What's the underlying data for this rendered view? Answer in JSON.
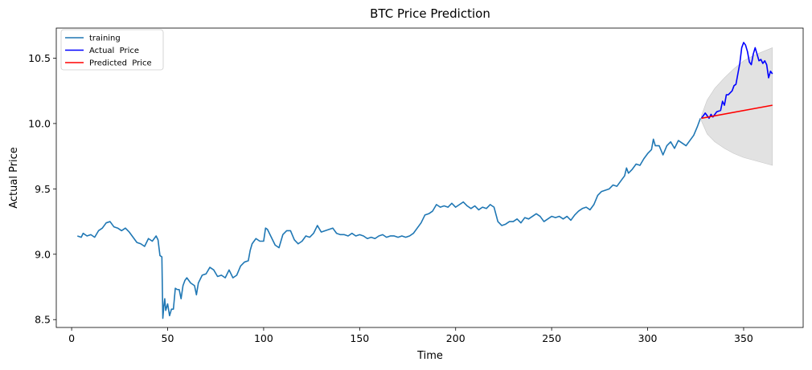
{
  "chart_data": {
    "type": "line",
    "title": "BTC Price Prediction",
    "xlabel": "Time",
    "ylabel": "Actual Price",
    "xlim": [
      -8,
      381
    ],
    "ylim": [
      8.44,
      10.73
    ],
    "xticks": [
      0,
      50,
      100,
      150,
      200,
      250,
      300,
      350
    ],
    "yticks": [
      8.5,
      9.0,
      9.5,
      10.0,
      10.5
    ],
    "ytick_labels": [
      "8.5",
      "9.0",
      "9.5",
      "10.0",
      "10.5"
    ],
    "grid": false,
    "legend_position": "top-left",
    "series": [
      {
        "name": "training",
        "color": "#1f77b4",
        "points": [
          [
            3,
            9.14
          ],
          [
            5,
            9.13
          ],
          [
            6,
            9.16
          ],
          [
            8,
            9.14
          ],
          [
            10,
            9.15
          ],
          [
            12,
            9.13
          ],
          [
            14,
            9.18
          ],
          [
            16,
            9.2
          ],
          [
            18,
            9.24
          ],
          [
            20,
            9.25
          ],
          [
            22,
            9.21
          ],
          [
            24,
            9.2
          ],
          [
            26,
            9.18
          ],
          [
            28,
            9.2
          ],
          [
            30,
            9.17
          ],
          [
            32,
            9.13
          ],
          [
            34,
            9.09
          ],
          [
            36,
            9.08
          ],
          [
            38,
            9.06
          ],
          [
            40,
            9.12
          ],
          [
            42,
            9.1
          ],
          [
            44,
            9.14
          ],
          [
            45,
            9.11
          ],
          [
            46,
            8.99
          ],
          [
            47,
            8.98
          ],
          [
            47.5,
            8.51
          ],
          [
            48,
            8.6
          ],
          [
            48.5,
            8.66
          ],
          [
            49,
            8.57
          ],
          [
            50,
            8.62
          ],
          [
            51,
            8.53
          ],
          [
            52,
            8.58
          ],
          [
            53,
            8.58
          ],
          [
            54,
            8.74
          ],
          [
            55,
            8.73
          ],
          [
            56,
            8.73
          ],
          [
            57,
            8.66
          ],
          [
            58,
            8.76
          ],
          [
            59,
            8.8
          ],
          [
            60,
            8.82
          ],
          [
            62,
            8.78
          ],
          [
            64,
            8.76
          ],
          [
            65,
            8.69
          ],
          [
            66,
            8.78
          ],
          [
            68,
            8.84
          ],
          [
            70,
            8.85
          ],
          [
            72,
            8.9
          ],
          [
            74,
            8.88
          ],
          [
            76,
            8.83
          ],
          [
            78,
            8.84
          ],
          [
            80,
            8.82
          ],
          [
            82,
            8.88
          ],
          [
            84,
            8.82
          ],
          [
            86,
            8.84
          ],
          [
            88,
            8.91
          ],
          [
            90,
            8.94
          ],
          [
            92,
            8.95
          ],
          [
            93,
            9.03
          ],
          [
            94,
            9.08
          ],
          [
            96,
            9.12
          ],
          [
            98,
            9.1
          ],
          [
            100,
            9.1
          ],
          [
            101,
            9.2
          ],
          [
            102,
            9.19
          ],
          [
            104,
            9.13
          ],
          [
            106,
            9.07
          ],
          [
            108,
            9.05
          ],
          [
            110,
            9.15
          ],
          [
            112,
            9.18
          ],
          [
            114,
            9.18
          ],
          [
            116,
            9.11
          ],
          [
            118,
            9.08
          ],
          [
            120,
            9.1
          ],
          [
            122,
            9.14
          ],
          [
            124,
            9.13
          ],
          [
            126,
            9.16
          ],
          [
            128,
            9.22
          ],
          [
            130,
            9.17
          ],
          [
            132,
            9.18
          ],
          [
            134,
            9.19
          ],
          [
            136,
            9.2
          ],
          [
            138,
            9.16
          ],
          [
            140,
            9.15
          ],
          [
            142,
            9.15
          ],
          [
            144,
            9.14
          ],
          [
            146,
            9.16
          ],
          [
            148,
            9.14
          ],
          [
            150,
            9.15
          ],
          [
            152,
            9.14
          ],
          [
            154,
            9.12
          ],
          [
            156,
            9.13
          ],
          [
            158,
            9.12
          ],
          [
            160,
            9.14
          ],
          [
            162,
            9.15
          ],
          [
            164,
            9.13
          ],
          [
            166,
            9.14
          ],
          [
            168,
            9.14
          ],
          [
            170,
            9.13
          ],
          [
            172,
            9.14
          ],
          [
            174,
            9.13
          ],
          [
            176,
            9.14
          ],
          [
            178,
            9.16
          ],
          [
            180,
            9.2
          ],
          [
            182,
            9.24
          ],
          [
            184,
            9.3
          ],
          [
            186,
            9.31
          ],
          [
            188,
            9.33
          ],
          [
            190,
            9.38
          ],
          [
            192,
            9.36
          ],
          [
            194,
            9.37
          ],
          [
            196,
            9.36
          ],
          [
            198,
            9.39
          ],
          [
            200,
            9.36
          ],
          [
            202,
            9.38
          ],
          [
            204,
            9.4
          ],
          [
            206,
            9.37
          ],
          [
            208,
            9.35
          ],
          [
            210,
            9.37
          ],
          [
            212,
            9.34
          ],
          [
            214,
            9.36
          ],
          [
            216,
            9.35
          ],
          [
            218,
            9.38
          ],
          [
            220,
            9.36
          ],
          [
            222,
            9.25
          ],
          [
            224,
            9.22
          ],
          [
            226,
            9.23
          ],
          [
            228,
            9.25
          ],
          [
            230,
            9.25
          ],
          [
            232,
            9.27
          ],
          [
            234,
            9.24
          ],
          [
            236,
            9.28
          ],
          [
            238,
            9.27
          ],
          [
            240,
            9.29
          ],
          [
            242,
            9.31
          ],
          [
            244,
            9.29
          ],
          [
            246,
            9.25
          ],
          [
            248,
            9.27
          ],
          [
            250,
            9.29
          ],
          [
            252,
            9.28
          ],
          [
            254,
            9.29
          ],
          [
            256,
            9.27
          ],
          [
            258,
            9.29
          ],
          [
            260,
            9.26
          ],
          [
            262,
            9.3
          ],
          [
            264,
            9.33
          ],
          [
            266,
            9.35
          ],
          [
            268,
            9.36
          ],
          [
            270,
            9.34
          ],
          [
            272,
            9.38
          ],
          [
            274,
            9.45
          ],
          [
            276,
            9.48
          ],
          [
            278,
            9.49
          ],
          [
            280,
            9.5
          ],
          [
            282,
            9.53
          ],
          [
            284,
            9.52
          ],
          [
            286,
            9.56
          ],
          [
            288,
            9.6
          ],
          [
            289,
            9.66
          ],
          [
            290,
            9.62
          ],
          [
            292,
            9.65
          ],
          [
            294,
            9.69
          ],
          [
            296,
            9.68
          ],
          [
            298,
            9.73
          ],
          [
            300,
            9.77
          ],
          [
            302,
            9.8
          ],
          [
            303,
            9.88
          ],
          [
            304,
            9.83
          ],
          [
            306,
            9.83
          ],
          [
            308,
            9.76
          ],
          [
            310,
            9.83
          ],
          [
            312,
            9.86
          ],
          [
            314,
            9.81
          ],
          [
            316,
            9.87
          ],
          [
            318,
            9.85
          ],
          [
            320,
            9.83
          ],
          [
            322,
            9.87
          ],
          [
            324,
            9.91
          ],
          [
            326,
            9.98
          ],
          [
            327.5,
            10.04
          ]
        ]
      },
      {
        "name": "Actual  Price",
        "color": "#0000ff",
        "points": [
          [
            328,
            10.04
          ],
          [
            330,
            10.08
          ],
          [
            332,
            10.04
          ],
          [
            333,
            10.07
          ],
          [
            334,
            10.05
          ],
          [
            336,
            10.09
          ],
          [
            338,
            10.1
          ],
          [
            339,
            10.17
          ],
          [
            340,
            10.14
          ],
          [
            341,
            10.22
          ],
          [
            342,
            10.22
          ],
          [
            344,
            10.25
          ],
          [
            345,
            10.29
          ],
          [
            346,
            10.3
          ],
          [
            347,
            10.38
          ],
          [
            348,
            10.46
          ],
          [
            349,
            10.58
          ],
          [
            350,
            10.62
          ],
          [
            351,
            10.6
          ],
          [
            352,
            10.55
          ],
          [
            353,
            10.47
          ],
          [
            354,
            10.45
          ],
          [
            355,
            10.53
          ],
          [
            356,
            10.58
          ],
          [
            357,
            10.53
          ],
          [
            358,
            10.48
          ],
          [
            359,
            10.49
          ],
          [
            360,
            10.46
          ],
          [
            361,
            10.48
          ],
          [
            362,
            10.45
          ],
          [
            363,
            10.35
          ],
          [
            364,
            10.4
          ],
          [
            365,
            10.38
          ]
        ]
      },
      {
        "name": "Predicted  Price",
        "color": "#ff0000",
        "points": [
          [
            328,
            10.04
          ],
          [
            365,
            10.14
          ]
        ]
      }
    ],
    "confidence_band": {
      "color": "#d3d3d3",
      "x": [
        328,
        331,
        335,
        340,
        345,
        350,
        355,
        360,
        365
      ],
      "upper": [
        10.06,
        10.18,
        10.27,
        10.35,
        10.42,
        10.48,
        10.52,
        10.55,
        10.58
      ],
      "lower": [
        10.02,
        9.92,
        9.86,
        9.81,
        9.77,
        9.74,
        9.72,
        9.7,
        9.68
      ]
    }
  }
}
